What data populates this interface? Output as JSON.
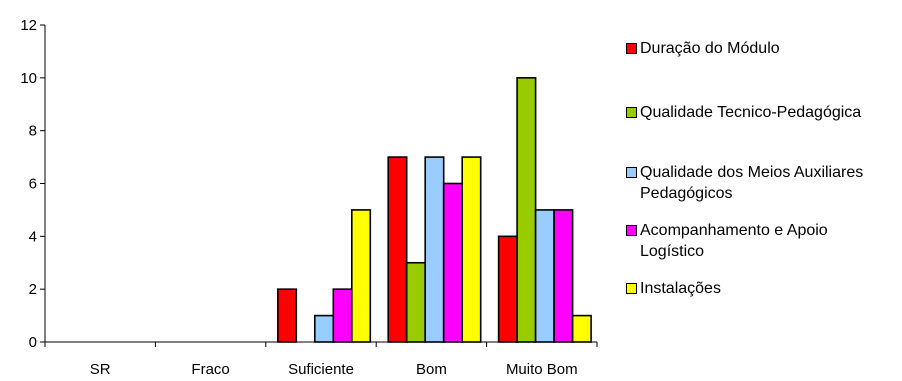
{
  "chart_data": {
    "type": "bar",
    "title": "",
    "xlabel": "",
    "ylabel": "",
    "ylim": [
      0,
      12
    ],
    "yticks": [
      0,
      2,
      4,
      6,
      8,
      10,
      12
    ],
    "grid": false,
    "legend_position": "right",
    "categories": [
      "SR",
      "Fraco",
      "Suficiente",
      "Bom",
      "Muito Bom"
    ],
    "series": [
      {
        "name": "Duração do Módulo",
        "color": "#ff0000",
        "values": [
          0,
          0,
          2,
          7,
          4
        ]
      },
      {
        "name": "Qualidade Tecnico-Pedagógica",
        "color": "#99cc00",
        "values": [
          0,
          0,
          0,
          3,
          10
        ]
      },
      {
        "name": "Qualidade dos Meios Auxiliares Pedagógicos",
        "color": "#99ccff",
        "values": [
          0,
          0,
          1,
          7,
          5
        ]
      },
      {
        "name": "Acompanhamento e Apoio Logístico",
        "color": "#ff00ff",
        "values": [
          0,
          0,
          2,
          6,
          5
        ]
      },
      {
        "name": "Instalações",
        "color": "#ffff00",
        "values": [
          0,
          0,
          5,
          7,
          1
        ]
      }
    ]
  }
}
